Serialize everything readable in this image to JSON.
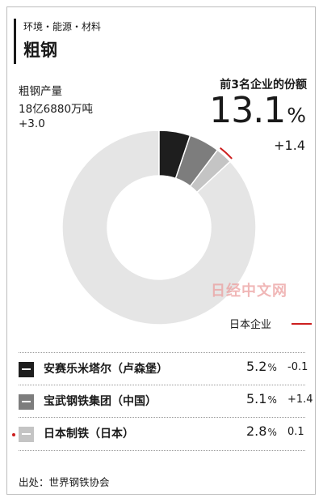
{
  "header": {
    "category": "环境・能源・材料",
    "title": "粗钢"
  },
  "production": {
    "label": "粗钢产量",
    "value": "18亿6880万吨",
    "change": "+3.0"
  },
  "top3_share": {
    "label": "前3名企业的份额",
    "value": "13.1",
    "unit": "%",
    "change": "+1.4"
  },
  "watermark": "日经中文网",
  "japan_marker_label": "日本企业",
  "colors": {
    "company_1": "#1e1e1e",
    "company_2": "#7d7d7d",
    "company_3": "#c4c4c4",
    "others": "#e5e5e5",
    "japan_marker": "#cc1f1f"
  },
  "chart_data": {
    "type": "pie",
    "style": "donut",
    "title": "粗钢",
    "categories": [
      "安赛乐米塔尔（卢森堡）",
      "宝武钢铁集团（中国）",
      "日本制铁（日本）"
    ],
    "values": [
      5.2,
      5.1,
      2.8
    ],
    "unit": "%",
    "changes": [
      "-0.1",
      "+1.4",
      "0.1"
    ],
    "remainder": 86.9,
    "japanese_companies": [
      "日本制铁（日本）"
    ]
  },
  "legend": [
    {
      "name": "安赛乐米塔尔（卢森堡）",
      "value": "5.2",
      "unit": "%",
      "change": "-0.1"
    },
    {
      "name": "宝武钢铁集团（中国）",
      "value": "5.1",
      "unit": "%",
      "change": "+1.4"
    },
    {
      "name": "日本制铁（日本）",
      "value": "2.8",
      "unit": "%",
      "change": "0.1"
    }
  ],
  "source": "出处：世界钢铁协会"
}
